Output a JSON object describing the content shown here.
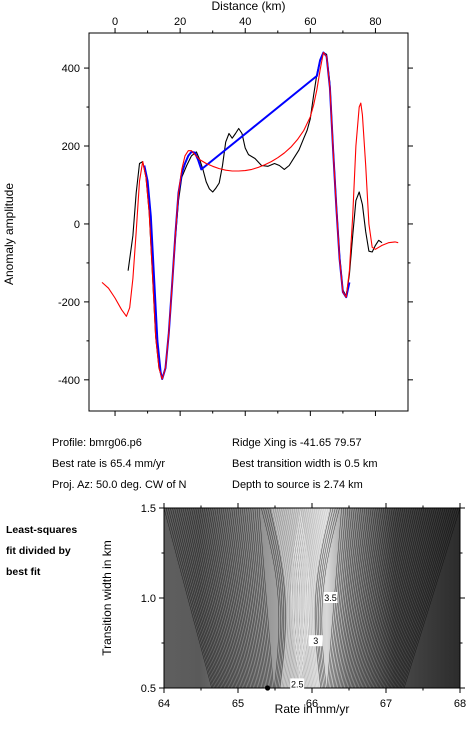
{
  "info": {
    "profile": "Profile: bmrg06.p6",
    "best_rate": "Best rate is 65.4 mm/yr",
    "proj_az": "Proj. Az: 50.0 deg. CW of N",
    "ridge_xing": "Ridge Xing is -41.65 79.57",
    "best_transition": "Best transition width is 0.5 km",
    "depth_to_source": "Depth to source is   2.74 km"
  },
  "side_note": [
    "Least-squares",
    "fit divided by",
    "best fit"
  ],
  "chart_data": [
    {
      "type": "line",
      "xlabel": "Distance (km)",
      "ylabel": "Anomaly amplitude",
      "xlim": [
        -8,
        90
      ],
      "ylim": [
        -480,
        490
      ],
      "x_ticks": [
        0,
        20,
        40,
        60,
        80
      ],
      "y_ticks": [
        -400,
        -200,
        0,
        200,
        400
      ],
      "grid": false,
      "series": [
        {
          "color": "#000000",
          "points": [
            [
              4,
              -120
            ],
            [
              5.5,
              -30
            ],
            [
              6.5,
              80
            ],
            [
              7.5,
              155
            ],
            [
              8.5,
              160
            ],
            [
              9.5,
              120
            ],
            [
              10.5,
              30
            ],
            [
              11.5,
              -130
            ],
            [
              12.5,
              -290
            ],
            [
              13.5,
              -370
            ],
            [
              14.5,
              -395
            ],
            [
              15.5,
              -370
            ],
            [
              16.5,
              -280
            ],
            [
              17.5,
              -160
            ],
            [
              18.5,
              -40
            ],
            [
              19.5,
              60
            ],
            [
              20.5,
              120
            ],
            [
              22,
              150
            ],
            [
              23.5,
              175
            ],
            [
              25,
              185
            ],
            [
              26,
              165
            ],
            [
              27,
              140
            ],
            [
              28,
              108
            ],
            [
              29,
              90
            ],
            [
              30,
              82
            ],
            [
              31,
              92
            ],
            [
              32,
              105
            ],
            [
              33,
              150
            ],
            [
              34,
              210
            ],
            [
              35,
              232
            ],
            [
              36,
              220
            ],
            [
              37,
              232
            ],
            [
              38,
              245
            ],
            [
              39,
              232
            ],
            [
              40,
              195
            ],
            [
              41,
              178
            ],
            [
              43,
              168
            ],
            [
              45,
              150
            ],
            [
              47,
              148
            ],
            [
              49,
              155
            ],
            [
              50.5,
              150
            ],
            [
              52,
              140
            ],
            [
              53.5,
              150
            ],
            [
              55,
              170
            ],
            [
              56.5,
              190
            ],
            [
              58,
              220
            ],
            [
              59,
              240
            ],
            [
              60,
              270
            ],
            [
              61,
              330
            ],
            [
              62,
              385
            ],
            [
              63,
              420
            ],
            [
              64,
              440
            ],
            [
              65,
              435
            ],
            [
              66,
              360
            ],
            [
              67,
              200
            ],
            [
              68,
              50
            ],
            [
              69,
              -80
            ],
            [
              70,
              -170
            ],
            [
              71,
              -185
            ],
            [
              72,
              -130
            ],
            [
              73,
              -30
            ],
            [
              74,
              60
            ],
            [
              75,
              82
            ],
            [
              76,
              50
            ],
            [
              77,
              -20
            ],
            [
              78,
              -70
            ],
            [
              79,
              -72
            ],
            [
              80,
              -55
            ],
            [
              81,
              -42
            ],
            [
              82,
              -48
            ]
          ]
        },
        {
          "color": "#0000ff",
          "points": [
            [
              9,
              150
            ],
            [
              10,
              110
            ],
            [
              11,
              20
            ],
            [
              12,
              -140
            ],
            [
              13,
              -300
            ],
            [
              14,
              -380
            ],
            [
              14.5,
              -398
            ],
            [
              15.5,
              -370
            ],
            [
              16.5,
              -280
            ],
            [
              17.5,
              -160
            ],
            [
              18.5,
              -30
            ],
            [
              19.5,
              80
            ],
            [
              20.5,
              130
            ],
            [
              21.5,
              155
            ],
            [
              22.5,
              175
            ],
            [
              23.5,
              185
            ],
            [
              24.5,
              183
            ],
            [
              25.5,
              165
            ],
            [
              26.5,
              140
            ],
            [
              62,
              380
            ],
            [
              63,
              420
            ],
            [
              64,
              440
            ],
            [
              65,
              430
            ],
            [
              66,
              350
            ],
            [
              67,
              190
            ],
            [
              68,
              40
            ],
            [
              69,
              -90
            ],
            [
              70,
              -175
            ],
            [
              71,
              -188
            ],
            [
              72,
              -150
            ]
          ]
        },
        {
          "color": "#ff0000",
          "points": [
            [
              -4,
              -150
            ],
            [
              -2,
              -165
            ],
            [
              0,
              -190
            ],
            [
              2,
              -220
            ],
            [
              3.5,
              -237
            ],
            [
              4.5,
              -215
            ],
            [
              5.5,
              -140
            ],
            [
              6.5,
              -20
            ],
            [
              7.5,
              110
            ],
            [
              8.5,
              160
            ],
            [
              9.5,
              120
            ],
            [
              10.5,
              30
            ],
            [
              11.5,
              -130
            ],
            [
              12.5,
              -290
            ],
            [
              13.5,
              -370
            ],
            [
              14.5,
              -398
            ],
            [
              15.5,
              -370
            ],
            [
              16.5,
              -280
            ],
            [
              17.5,
              -160
            ],
            [
              18.5,
              -30
            ],
            [
              19.5,
              80
            ],
            [
              20.5,
              140
            ],
            [
              21.5,
              175
            ],
            [
              22.5,
              188
            ],
            [
              23.5,
              188
            ],
            [
              24.5,
              178
            ],
            [
              26,
              165
            ],
            [
              28,
              155
            ],
            [
              30,
              148
            ],
            [
              32,
              142
            ],
            [
              34,
              138
            ],
            [
              36,
              136
            ],
            [
              38,
              136
            ],
            [
              40,
              137
            ],
            [
              42,
              140
            ],
            [
              44,
              145
            ],
            [
              46,
              152
            ],
            [
              48,
              160
            ],
            [
              50,
              170
            ],
            [
              52,
              182
            ],
            [
              54,
              197
            ],
            [
              56,
              216
            ],
            [
              58,
              240
            ],
            [
              60,
              275
            ],
            [
              61,
              305
            ],
            [
              62,
              345
            ],
            [
              63,
              395
            ],
            [
              64,
              440
            ],
            [
              65,
              430
            ],
            [
              66,
              350
            ],
            [
              67,
              190
            ],
            [
              68,
              40
            ],
            [
              69,
              -90
            ],
            [
              70,
              -175
            ],
            [
              71,
              -188
            ],
            [
              72,
              -120
            ],
            [
              73,
              20
            ],
            [
              74,
              200
            ],
            [
              75,
              300
            ],
            [
              75.5,
              310
            ],
            [
              76,
              280
            ],
            [
              77,
              150
            ],
            [
              78,
              0
            ],
            [
              79,
              -60
            ],
            [
              80,
              -65
            ],
            [
              82,
              -55
            ],
            [
              84,
              -48
            ],
            [
              86,
              -46
            ],
            [
              87,
              -48
            ]
          ]
        }
      ]
    },
    {
      "type": "heatmap",
      "xlabel": "Rate in mm/yr",
      "ylabel": "Transition width in km",
      "xlim": [
        64,
        68
      ],
      "ylim": [
        0.5,
        1.5
      ],
      "x_ticks": [
        64,
        65,
        66,
        67,
        68
      ],
      "y_ticks": [
        0.5,
        1.0,
        1.5
      ],
      "best_fit": {
        "rate": 65.4,
        "width": 0.5
      },
      "contour_labels": [
        {
          "text": "3.5",
          "x": 66.25,
          "y": 1.0
        },
        {
          "text": "3",
          "x": 66.05,
          "y": 0.76
        },
        {
          "text": "2.5",
          "x": 65.8,
          "y": 0.52
        }
      ]
    }
  ]
}
